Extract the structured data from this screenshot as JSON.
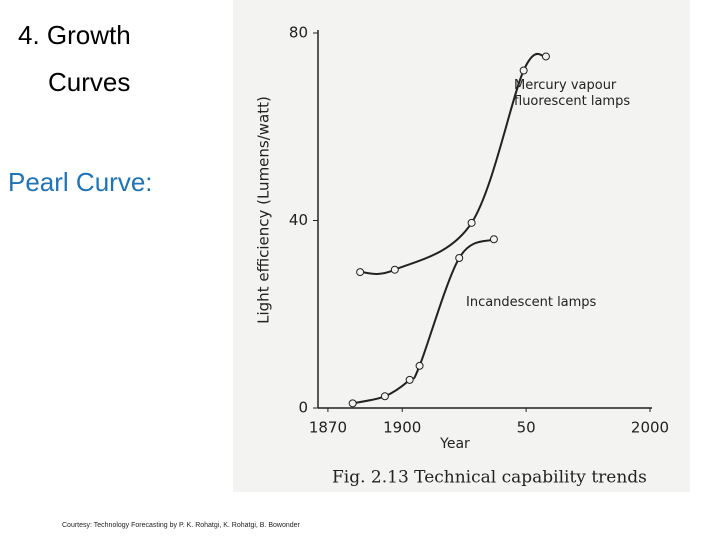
{
  "slide": {
    "title_line1": "4.  Growth",
    "title_line2": "Curves",
    "subtitle": "Pearl Curve:",
    "credit": "Courtesy: Technology Forecasting by P. K. Rohatgi, K. Rohatgi, B. Bowonder"
  },
  "chart_data": {
    "type": "line",
    "caption": "Fig. 2.13 Technical capability trends",
    "x_label": "Year",
    "y_label": "Light efficiency (Lumens/watt)",
    "xlim": [
      1866,
      2000
    ],
    "ylim": [
      0,
      80
    ],
    "xticks": [
      1870,
      1900,
      {
        "value": 1950,
        "label": "50"
      },
      2000
    ],
    "yticks": [
      0,
      40,
      80
    ],
    "series": [
      {
        "name": "Mercury vapour fluorescent lamps",
        "color": "#222222",
        "x": [
          1883,
          1897,
          1928,
          1949,
          1958
        ],
        "values": [
          29,
          29.5,
          39.5,
          72,
          75
        ]
      },
      {
        "name": "Incandescent lamps",
        "color": "#222222",
        "x": [
          1880,
          1893,
          1903,
          1907,
          1923,
          1937
        ],
        "values": [
          1,
          2.5,
          6,
          9,
          32,
          36
        ]
      }
    ]
  }
}
